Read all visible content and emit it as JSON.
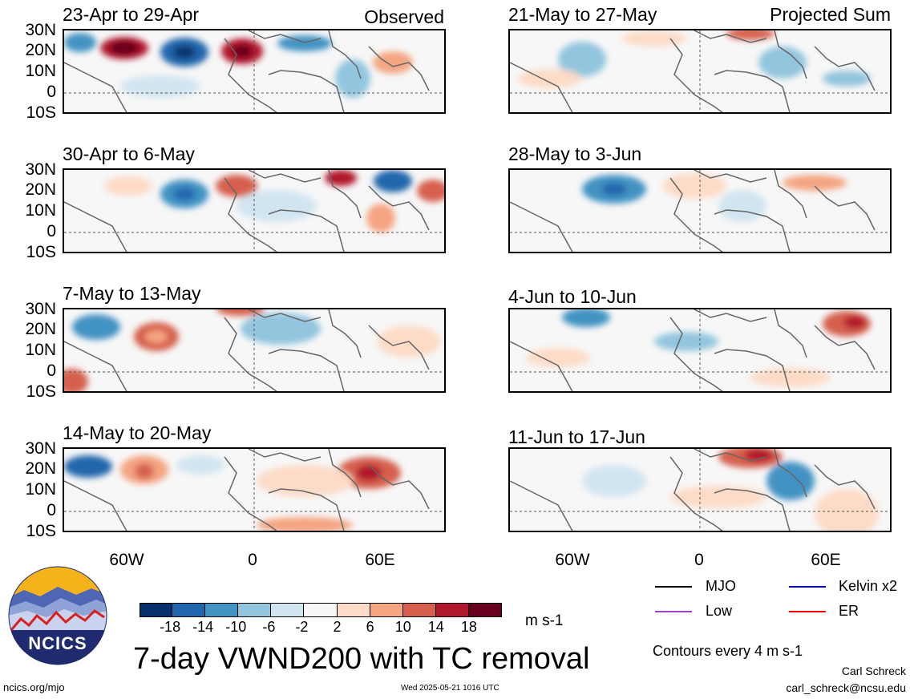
{
  "panels": {
    "left": [
      {
        "title": "23-Apr to 29-Apr",
        "corner": "Observed"
      },
      {
        "title": "30-Apr to 6-May",
        "corner": ""
      },
      {
        "title": "7-May to 13-May",
        "corner": ""
      },
      {
        "title": "14-May to 20-May",
        "corner": ""
      }
    ],
    "right": [
      {
        "title": "21-May to 27-May",
        "corner": "Projected Sum"
      },
      {
        "title": "28-May to 3-Jun",
        "corner": ""
      },
      {
        "title": "4-Jun to 10-Jun",
        "corner": ""
      },
      {
        "title": "11-Jun to 17-Jun",
        "corner": ""
      }
    ]
  },
  "lat_labels": [
    "30N",
    "20N",
    "10N",
    "0",
    "10S"
  ],
  "lon_labels": [
    "60W",
    "0",
    "60E"
  ],
  "colorbar": {
    "colors": [
      "#08306b",
      "#2166ac",
      "#4393c3",
      "#92c5de",
      "#d1e5f0",
      "#f7f7f7",
      "#fddbc7",
      "#f4a582",
      "#d6604d",
      "#b2182b",
      "#67001f"
    ],
    "ticks": [
      "-18",
      "-14",
      "-10",
      "-6",
      "-2",
      "2",
      "6",
      "10",
      "14",
      "18"
    ],
    "units": "m s-1"
  },
  "main_title": "7-day VWND200 with TC removal",
  "legend": {
    "mjo": {
      "label": "MJO",
      "color": "#000000"
    },
    "kelvin": {
      "label": "Kelvin x2",
      "color": "#0000ff"
    },
    "low": {
      "label": "Low",
      "color": "#a040d0"
    },
    "er": {
      "label": "ER",
      "color": "#ff0000"
    }
  },
  "contours_note": "Contours every 4 m s-1",
  "logo_text": "NCICS",
  "footer": {
    "url": "ncics.org/mjo",
    "timestamp": "Wed 2025-05-21 1016 UTC",
    "author": "Carl Schreck",
    "email": "carl_schreck@ncsu.edu"
  }
}
